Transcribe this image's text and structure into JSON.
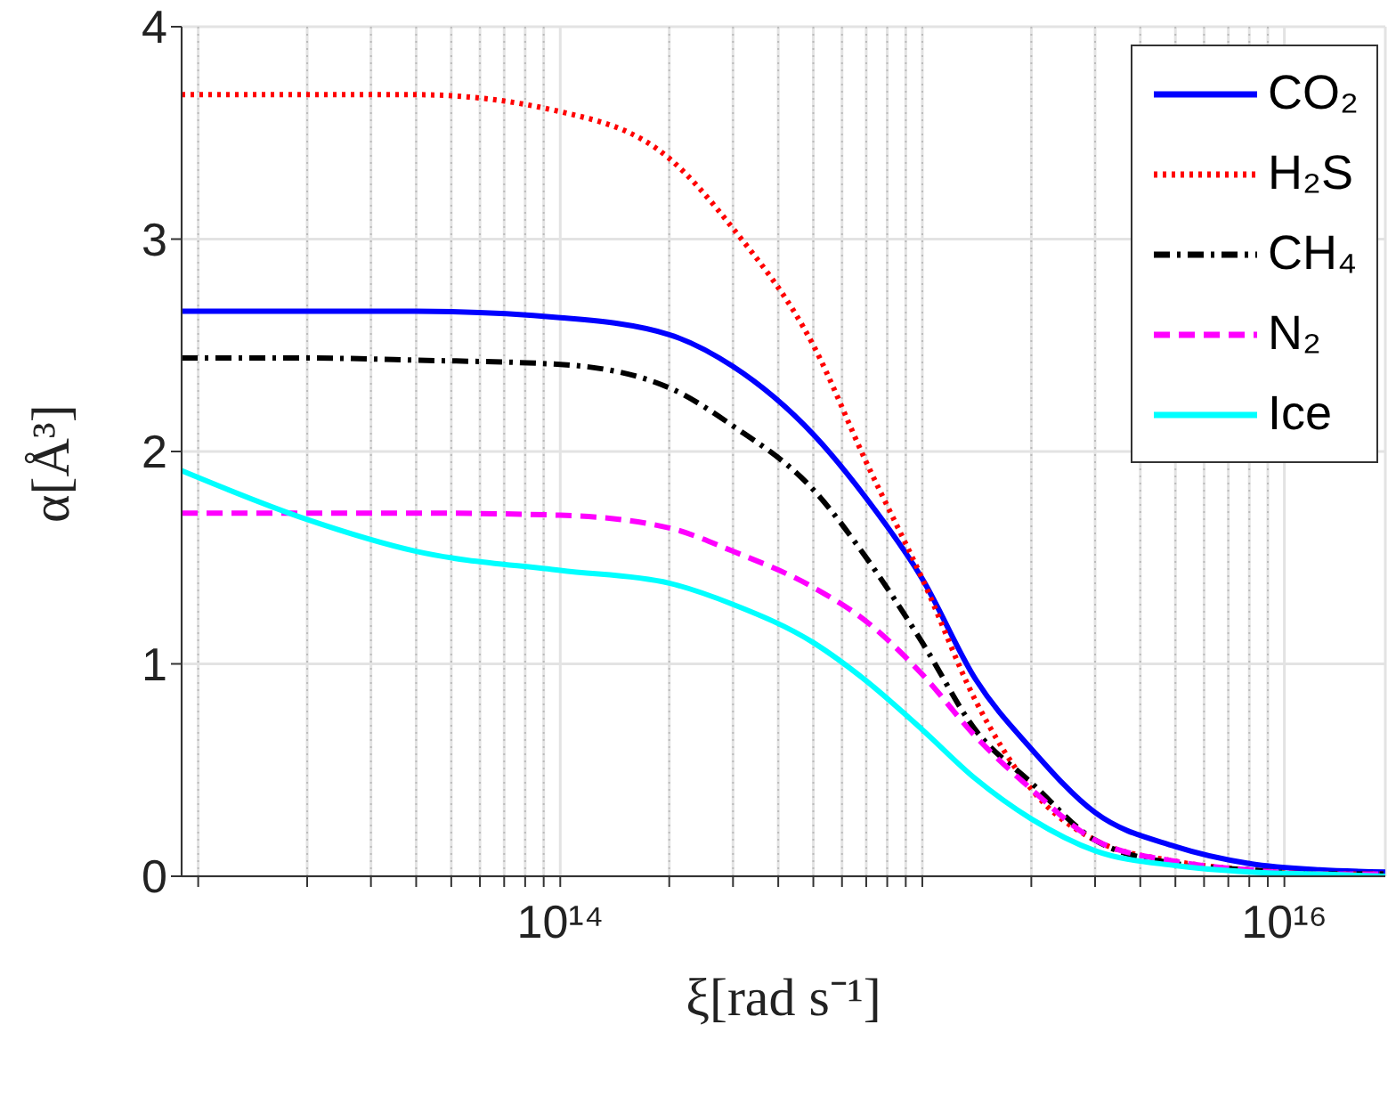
{
  "chart_data": {
    "type": "line",
    "xlabel": "ξ[rad s⁻¹]",
    "ylabel": "α[Å³]",
    "log": "x",
    "x": [
      9000000000000.0,
      20000000000000.0,
      40000000000000.0,
      100000000000000.0,
      200000000000000.0,
      300000000000000.0,
      500000000000000.0,
      700000000000000.0,
      1000000000000000.0,
      1400000000000000.0,
      2000000000000000.0,
      3000000000000000.0,
      5000000000000000.0,
      8000000000000000.0,
      1.25e+16,
      1.9e+16
    ],
    "xlim": [
      9000000000000.0,
      1.9e+16
    ],
    "xticks": [
      {
        "value": 10000000000000.0,
        "label": null
      },
      {
        "value": 20000000000000.0,
        "label": null
      },
      {
        "value": 30000000000000.0,
        "label": null
      },
      {
        "value": 40000000000000.0,
        "label": null
      },
      {
        "value": 50000000000000.0,
        "label": null
      },
      {
        "value": 60000000000000.0,
        "label": null
      },
      {
        "value": 70000000000000.0,
        "label": null
      },
      {
        "value": 80000000000000.0,
        "label": null
      },
      {
        "value": 90000000000000.0,
        "label": null
      },
      {
        "value": 100000000000000.0,
        "label": "10¹⁴"
      },
      {
        "value": 200000000000000.0,
        "label": null
      },
      {
        "value": 300000000000000.0,
        "label": null
      },
      {
        "value": 400000000000000.0,
        "label": null
      },
      {
        "value": 500000000000000.0,
        "label": null
      },
      {
        "value": 600000000000000.0,
        "label": null
      },
      {
        "value": 700000000000000.0,
        "label": null
      },
      {
        "value": 800000000000000.0,
        "label": null
      },
      {
        "value": 900000000000000.0,
        "label": null
      },
      {
        "value": 1000000000000000.0,
        "label": null
      },
      {
        "value": 2000000000000000.0,
        "label": null
      },
      {
        "value": 3000000000000000.0,
        "label": null
      },
      {
        "value": 4000000000000000.0,
        "label": null
      },
      {
        "value": 5000000000000000.0,
        "label": null
      },
      {
        "value": 6000000000000000.0,
        "label": null
      },
      {
        "value": 7000000000000000.0,
        "label": null
      },
      {
        "value": 8000000000000000.0,
        "label": null
      },
      {
        "value": 9000000000000000.0,
        "label": null
      },
      {
        "value": 1e+16,
        "label": "10¹⁶"
      }
    ],
    "ylim": [
      0,
      4
    ],
    "yticks": [
      0,
      1,
      2,
      3,
      4
    ],
    "grid": true,
    "legend": "top right",
    "marker": "none",
    "series": [
      {
        "name": "CO₂",
        "color": "#0000ff",
        "line_style": "solid",
        "values": [
          2.66,
          2.66,
          2.66,
          2.63,
          2.55,
          2.4,
          2.08,
          1.78,
          1.4,
          0.93,
          0.6,
          0.3,
          0.14,
          0.06,
          0.03,
          0.02
        ]
      },
      {
        "name": "H₂S",
        "color": "#ff0000",
        "line_style": "dotted",
        "values": [
          3.68,
          3.68,
          3.68,
          3.6,
          3.38,
          3.05,
          2.5,
          1.95,
          1.4,
          0.83,
          0.41,
          0.17,
          0.07,
          0.03,
          0.01,
          0.01
        ]
      },
      {
        "name": "CH₄",
        "color": "#000000",
        "line_style": "dashdot",
        "values": [
          2.44,
          2.44,
          2.43,
          2.41,
          2.3,
          2.12,
          1.82,
          1.5,
          1.1,
          0.69,
          0.44,
          0.17,
          0.06,
          0.03,
          0.01,
          0.01
        ]
      },
      {
        "name": "N₂",
        "color": "#ff00ff",
        "line_style": "dashed",
        "values": [
          1.71,
          1.71,
          1.71,
          1.7,
          1.64,
          1.53,
          1.36,
          1.2,
          0.95,
          0.66,
          0.41,
          0.17,
          0.07,
          0.03,
          0.01,
          0.01
        ]
      },
      {
        "name": "Ice",
        "color": "#00ffff",
        "line_style": "solid",
        "values": [
          1.91,
          1.68,
          1.53,
          1.44,
          1.38,
          1.28,
          1.1,
          0.92,
          0.69,
          0.46,
          0.27,
          0.12,
          0.05,
          0.02,
          0.01,
          0
        ]
      }
    ]
  }
}
